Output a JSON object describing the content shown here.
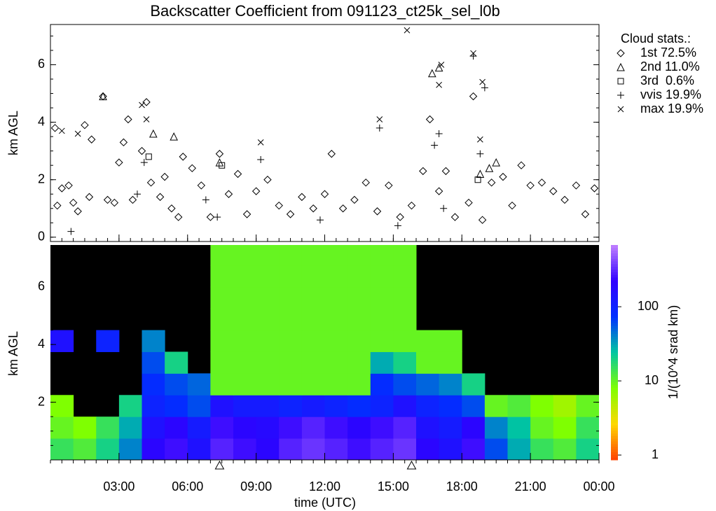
{
  "chart_data": [
    {
      "type": "scatter",
      "title": "Backscatter Coefficient from 091123_ct25k_sel_l0b",
      "ylabel": "km AGL",
      "legend_title": "Cloud stats.:",
      "xlim": [
        0,
        24
      ],
      "ylim": [
        -0.15,
        7.4
      ],
      "yticks": [
        0,
        2,
        4,
        6
      ],
      "xticks": [
        3,
        6,
        9,
        12,
        15,
        18,
        21,
        24
      ],
      "color": "#000000",
      "series": [
        {
          "name": "1st 72.5%",
          "marker": "diamond",
          "x": [
            0.2,
            0.3,
            0.5,
            0.8,
            1.0,
            1.2,
            1.5,
            1.7,
            1.8,
            2.3,
            2.5,
            2.8,
            3.0,
            3.2,
            3.4,
            3.6,
            4.0,
            4.2,
            4.4,
            4.8,
            5.0,
            5.3,
            5.6,
            5.8,
            6.2,
            6.6,
            7.0,
            7.4,
            7.8,
            8.2,
            8.6,
            9.0,
            9.5,
            10.0,
            10.5,
            11.0,
            11.5,
            12.0,
            12.3,
            12.8,
            13.3,
            13.8,
            14.3,
            14.8,
            15.3,
            15.8,
            16.3,
            16.6,
            17.0,
            17.3,
            17.7,
            18.3,
            18.5,
            18.9,
            19.3,
            19.8,
            20.2,
            20.6,
            21.0,
            21.5,
            22.0,
            22.5,
            23.0,
            23.4,
            23.8
          ],
          "values": [
            3.8,
            1.1,
            1.7,
            1.8,
            1.2,
            0.9,
            3.9,
            1.4,
            3.4,
            4.9,
            1.3,
            1.2,
            2.6,
            3.3,
            4.1,
            1.3,
            3.0,
            4.7,
            1.9,
            1.4,
            2.1,
            1.0,
            0.7,
            2.8,
            2.4,
            1.8,
            0.7,
            2.9,
            1.5,
            2.2,
            0.8,
            1.6,
            2.0,
            1.1,
            0.8,
            1.4,
            1.0,
            1.5,
            2.9,
            1.0,
            1.3,
            1.9,
            0.9,
            1.8,
            0.7,
            1.1,
            2.3,
            4.1,
            1.6,
            2.3,
            0.7,
            1.2,
            4.9,
            0.6,
            1.9,
            2.1,
            1.1,
            2.5,
            1.8,
            1.9,
            1.6,
            1.3,
            1.8,
            0.8,
            1.7
          ]
        },
        {
          "name": "2nd 11.0%",
          "marker": "triangle",
          "x": [
            2.3,
            4.5,
            5.4,
            7.4,
            16.7,
            17.0,
            18.8,
            19.2,
            19.5
          ],
          "values": [
            4.9,
            3.6,
            3.5,
            2.6,
            5.7,
            5.9,
            2.2,
            2.4,
            2.6
          ]
        },
        {
          "name": "3rd  0.6%",
          "marker": "square",
          "x": [
            4.3,
            7.5,
            18.7
          ],
          "values": [
            2.8,
            2.5,
            2.0
          ]
        },
        {
          "name": "vvis 19.9%",
          "marker": "plus",
          "x": [
            0.9,
            3.8,
            4.1,
            6.8,
            7.3,
            9.2,
            11.8,
            14.4,
            15.2,
            16.8,
            17.0,
            17.2,
            18.5,
            19.0,
            18.8
          ],
          "values": [
            0.2,
            1.5,
            2.6,
            1.3,
            0.7,
            2.7,
            0.6,
            3.8,
            0.4,
            3.2,
            3.6,
            1.0,
            6.3,
            5.2,
            2.9
          ]
        },
        {
          "name": "max 19.9%",
          "marker": "cross",
          "x": [
            0.5,
            1.2,
            4.0,
            4.2,
            9.2,
            14.4,
            15.6,
            17.0,
            17.1,
            18.5,
            18.9,
            18.8
          ],
          "values": [
            3.7,
            3.6,
            4.6,
            4.1,
            3.3,
            4.1,
            7.2,
            5.3,
            6.0,
            6.4,
            5.4,
            3.4
          ]
        }
      ]
    },
    {
      "type": "heatmap",
      "ylabel": "km AGL",
      "xlabel": "time (UTC)",
      "xlim": [
        0,
        24
      ],
      "ylim": [
        0,
        7.45
      ],
      "yticks": [
        2,
        4,
        6
      ],
      "xticks": [
        {
          "value": 3,
          "label": "03:00"
        },
        {
          "value": 6,
          "label": "06:00"
        },
        {
          "value": 9,
          "label": "09:00"
        },
        {
          "value": 12,
          "label": "12:00"
        },
        {
          "value": 15,
          "label": "15:00"
        },
        {
          "value": 18,
          "label": "18:00"
        },
        {
          "value": 21,
          "label": "21:00"
        },
        {
          "value": 24,
          "label": "00:00"
        }
      ],
      "x_bins": [
        0,
        1,
        2,
        3,
        4,
        5,
        6,
        7,
        8,
        9,
        10,
        11,
        12,
        13,
        14,
        15,
        16,
        17,
        18,
        19,
        20,
        21,
        22,
        23,
        24
      ],
      "y_bins": [
        0,
        0.75,
        1.5,
        2.25,
        3,
        3.75,
        4.5,
        5.25,
        6,
        6.75,
        7.5
      ],
      "z": [
        [
          15,
          12,
          20,
          40,
          200,
          250,
          150,
          300,
          250,
          200,
          300,
          350,
          300,
          250,
          300,
          350,
          200,
          150,
          250,
          60,
          30,
          15,
          12,
          20
        ],
        [
          10,
          8,
          15,
          30,
          150,
          200,
          120,
          250,
          200,
          180,
          250,
          300,
          250,
          200,
          250,
          300,
          150,
          120,
          200,
          40,
          25,
          10,
          8,
          15
        ],
        [
          8,
          null,
          null,
          20,
          100,
          80,
          60,
          150,
          120,
          120,
          100,
          120,
          100,
          80,
          100,
          150,
          100,
          80,
          60,
          10,
          12,
          8,
          6,
          10
        ],
        [
          null,
          null,
          null,
          null,
          80,
          60,
          50,
          10,
          10,
          10,
          10,
          10,
          10,
          10,
          80,
          60,
          50,
          40,
          20,
          null,
          null,
          null,
          null,
          null
        ],
        [
          null,
          null,
          null,
          null,
          60,
          20,
          null,
          10,
          10,
          10,
          10,
          10,
          10,
          10,
          30,
          20,
          10,
          10,
          null,
          null,
          null,
          null,
          null,
          null
        ],
        [
          150,
          null,
          100,
          null,
          40,
          null,
          null,
          10,
          10,
          10,
          10,
          10,
          10,
          10,
          10,
          10,
          10,
          10,
          null,
          null,
          null,
          null,
          null,
          null
        ],
        [
          null,
          null,
          null,
          null,
          null,
          null,
          null,
          10,
          10,
          10,
          10,
          10,
          10,
          10,
          10,
          10,
          null,
          null,
          null,
          null,
          null,
          null,
          null,
          null
        ],
        [
          null,
          null,
          null,
          null,
          null,
          null,
          null,
          10,
          10,
          10,
          10,
          10,
          10,
          10,
          10,
          10,
          null,
          null,
          null,
          null,
          null,
          null,
          null,
          null
        ],
        [
          null,
          null,
          null,
          null,
          null,
          null,
          null,
          10,
          10,
          10,
          10,
          10,
          10,
          10,
          10,
          10,
          null,
          null,
          null,
          null,
          null,
          null,
          null,
          null
        ],
        [
          null,
          null,
          null,
          null,
          null,
          null,
          null,
          10,
          10,
          10,
          10,
          10,
          10,
          10,
          10,
          10,
          null,
          null,
          null,
          null,
          null,
          null,
          null,
          null
        ]
      ],
      "background": "#000000",
      "event_markers_x": [
        7.4,
        15.8
      ],
      "colorbar": {
        "label": "1/(10^4 srad km)",
        "lim": [
          0.86,
          680
        ],
        "log": true,
        "ticks": [
          1,
          10,
          100
        ],
        "colors": [
          "#ff4000",
          "#ffd700",
          "#80ff00",
          "#00c8a0",
          "#0030ff",
          "#3000ff",
          "#c080ff"
        ]
      }
    }
  ]
}
